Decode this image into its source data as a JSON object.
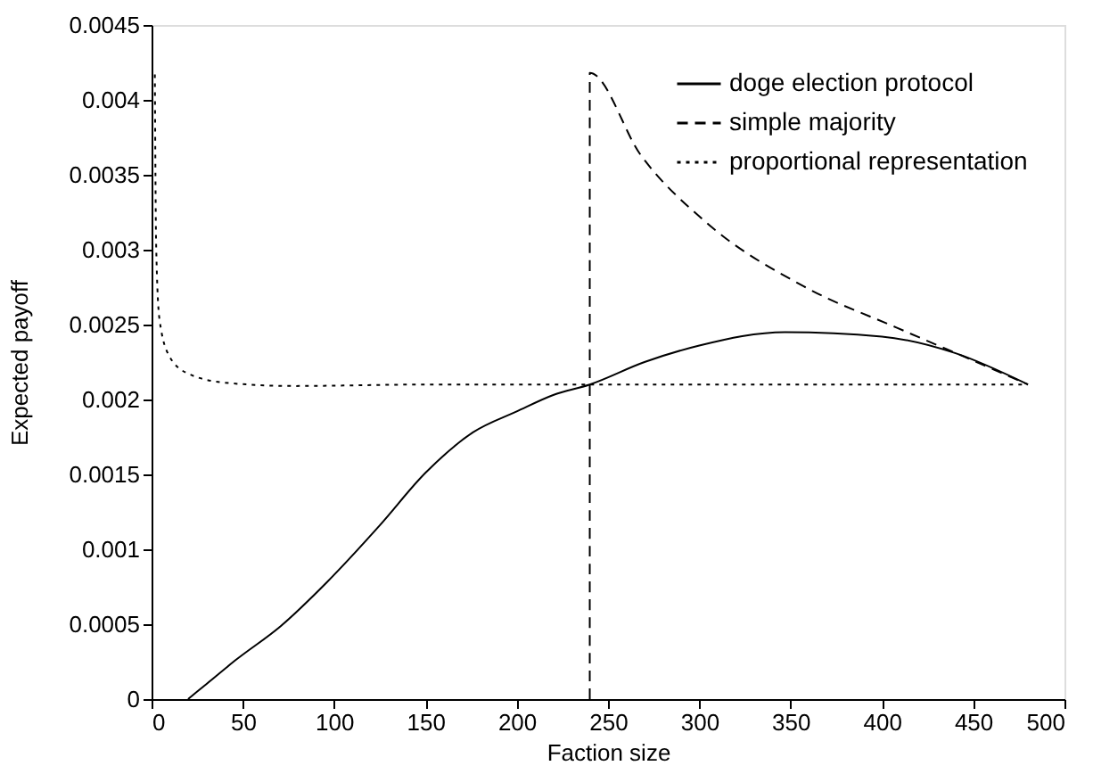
{
  "chart_data": {
    "type": "line",
    "xlabel": "Faction size",
    "ylabel": "Expected payoff",
    "xlim": [
      0,
      500
    ],
    "xticks": [
      0,
      50,
      100,
      150,
      200,
      250,
      300,
      350,
      400,
      450,
      500
    ],
    "ylim": [
      0,
      0.0045
    ],
    "yticks": [
      0,
      0.0005,
      0.001,
      0.0015,
      0.002,
      0.0025,
      0.003,
      0.0035,
      0.004,
      0.0045
    ],
    "grid": false,
    "legend": "top right",
    "series": [
      {
        "name": "doge election protocol",
        "color": "#000000",
        "line_style": "solid",
        "x": [
          20,
          30,
          46,
          71,
          96,
          125,
          150,
          176,
          200,
          220,
          240,
          270,
          300,
          347,
          400,
          440,
          480
        ],
        "values": [
          0,
          0.0001,
          0.00026,
          0.00049,
          0.00078,
          0.00116,
          0.00151,
          0.00178,
          0.00192,
          0.00203,
          0.0021,
          0.00225,
          0.00236,
          0.00245,
          0.00242,
          0.00231,
          0.0021
        ]
      },
      {
        "name": "simple majority",
        "color": "#000000",
        "line_style": "dashed",
        "x": [
          240,
          240,
          268,
          304,
          358,
          408,
          450,
          480
        ],
        "values": [
          0,
          0.00418,
          0.00363,
          0.00318,
          0.00275,
          0.00248,
          0.00226,
          0.0021
        ]
      },
      {
        "name": "proportional representation",
        "color": "#000000",
        "line_style": "dotted",
        "x": [
          1.8,
          2.5,
          4.3,
          9.7,
          20.5,
          42,
          78,
          150,
          300,
          480
        ],
        "values": [
          0.00417,
          0.00304,
          0.00254,
          0.00229,
          0.00217,
          0.00211,
          0.00209,
          0.0021,
          0.0021,
          0.0021
        ]
      }
    ]
  }
}
